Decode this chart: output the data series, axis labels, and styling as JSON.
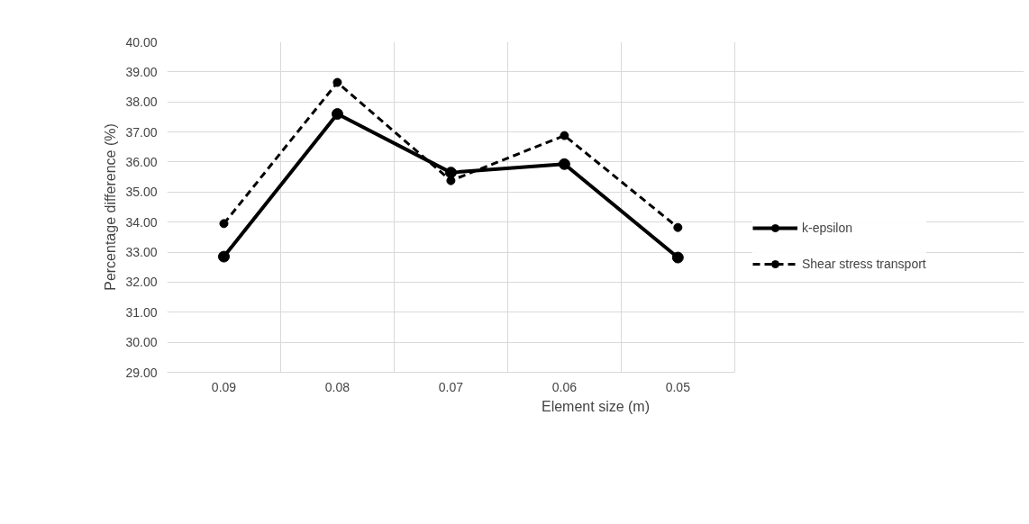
{
  "chart_data": {
    "type": "line",
    "xlabel": "Element size (m)",
    "ylabel": "Percentage difference (%)",
    "categories": [
      "0.09",
      "0.08",
      "0.07",
      "0.06",
      "0.05"
    ],
    "series": [
      {
        "name": "k-epsilon",
        "color": "#000000",
        "line_style": "solid",
        "values": [
          32.85,
          37.6,
          35.65,
          35.93,
          32.82
        ]
      },
      {
        "name": "Shear stress transport",
        "color": "#000000",
        "line_style": "dashed",
        "values": [
          33.95,
          38.65,
          35.38,
          36.88,
          33.82
        ]
      }
    ],
    "ylim": [
      29,
      40
    ],
    "yticks": [
      {
        "value": 29,
        "label": "29.00"
      },
      {
        "value": 30,
        "label": "30.00"
      },
      {
        "value": 31,
        "label": "31.00"
      },
      {
        "value": 32,
        "label": "32.00"
      },
      {
        "value": 33,
        "label": "33.00"
      },
      {
        "value": 34,
        "label": "34.00"
      },
      {
        "value": 35,
        "label": "35.00"
      },
      {
        "value": 36,
        "label": "36.00"
      },
      {
        "value": 37,
        "label": "37.00"
      },
      {
        "value": 38,
        "label": "38.00"
      },
      {
        "value": 39,
        "label": "39.00"
      },
      {
        "value": 40,
        "label": "40.00"
      }
    ],
    "grid": true,
    "legend": "right",
    "marker": "circle"
  }
}
